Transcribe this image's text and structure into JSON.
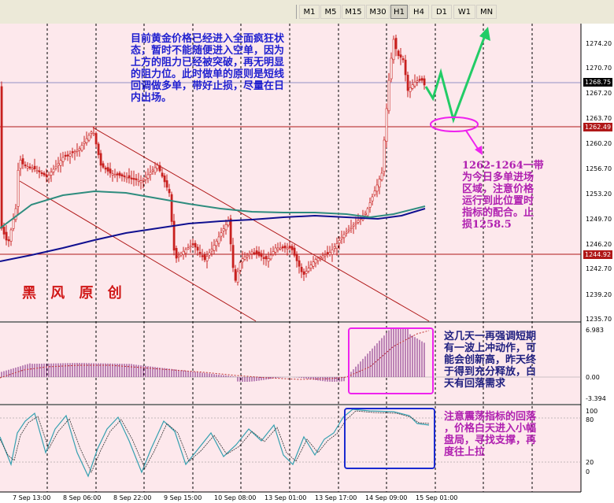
{
  "toolbar": {
    "timeframes": [
      "M1",
      "M5",
      "M15",
      "M30",
      "H1",
      "H4",
      "D1",
      "W1",
      "MN"
    ],
    "active": "H1"
  },
  "price_axis": {
    "labels": [
      "1274.20",
      "1270.70",
      "1267.20",
      "1263.70",
      "1260.20",
      "1256.70",
      "1253.20",
      "1249.70",
      "1246.20",
      "1242.70",
      "1239.20",
      "1235.70"
    ],
    "current_price": "1268.75",
    "support_line_tag": "1262.49",
    "resistance_line_tag": "1244.92"
  },
  "macd_axis": {
    "top": "6.983",
    "zero": "0.00",
    "bottom": "-3.394"
  },
  "stoch_axis": {
    "levels": [
      "100",
      "80",
      "20",
      "0"
    ]
  },
  "time_axis": {
    "labels": [
      "7 Sep 13:00",
      "8 Sep 06:00",
      "8 Sep 22:00",
      "9 Sep 15:00",
      "10 Sep 08:00",
      "13 Sep 01:00",
      "13 Sep 17:00",
      "14 Sep 09:00",
      "15 Sep 01:00"
    ]
  },
  "annotations": {
    "top_note": "目前黄金价格已经进入全面疯狂状\n态，暂时不能随便进入空单，因为\n上方的阻力已经被突破，再无明显\n的阻力位。此时做单的原则是短线\n回调做多单，带好止损，尽量在日\n内出场。",
    "signature": "黑 风 原 创",
    "zone_note": "1262-1264一带\n为今日多单进场\n区域，注意价格\n运行到此位置时\n指标的配合。止\n损1258.5",
    "macd_note": "这几天一再强调短期\n有一波上冲动作，可\n能会创新高，昨天终\n于得到充分释放，白\n天有回落需求",
    "stoch_note": "注意震荡指标的回落\n，价格白天进入小幅\n盘局，寻找支撑，再\n度往上拉"
  },
  "colors": {
    "chart_bg": "#fde8ec",
    "candle": "#c8201e",
    "ma_blue": "#101090",
    "ma_teal": "#2e8c7e",
    "forecast_arrow": "#22cc66",
    "zone_ellipse": "#ee22ee",
    "macd_bars": "#7a2080",
    "level_line": "#b01818"
  }
}
